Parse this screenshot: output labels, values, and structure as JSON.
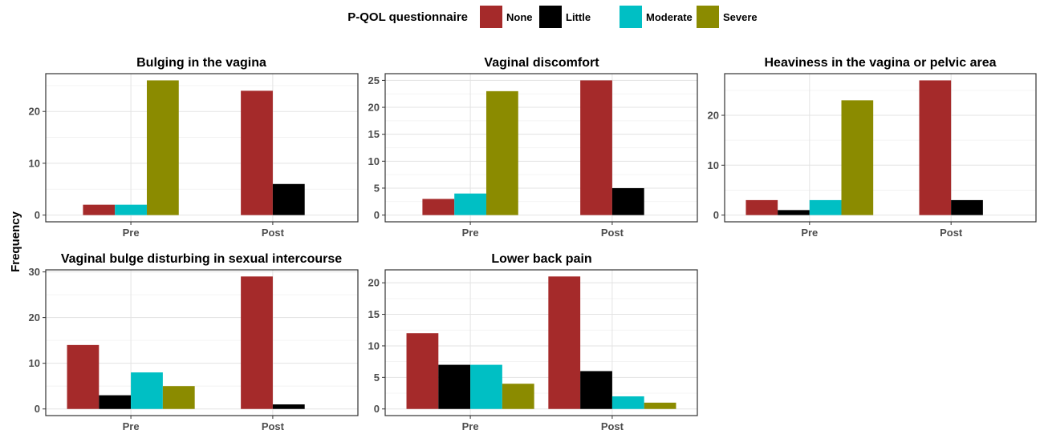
{
  "chart_data": {
    "type": "bar",
    "legend": {
      "title": "P-QOL questionnaire",
      "placement": "top",
      "entries": [
        {
          "name": "None",
          "color": "#a52a2a"
        },
        {
          "name": "Little",
          "color": "#000000"
        },
        {
          "name": "Moderate",
          "color": "#00bfc4"
        },
        {
          "name": "Severe",
          "color": "#8b8b00"
        }
      ]
    },
    "ylabel": "Frequency",
    "grid": true,
    "categories": [
      "Pre",
      "Post"
    ],
    "panels": [
      {
        "title": "Bulging in the vagina",
        "ylim": [
          -1.3,
          27.3
        ],
        "yticks": [
          0,
          10,
          20
        ],
        "groups": [
          {
            "category": "Pre",
            "bars": [
              {
                "level": "None",
                "value": 2
              },
              {
                "level": "Moderate",
                "value": 2
              },
              {
                "level": "Severe",
                "value": 26
              }
            ]
          },
          {
            "category": "Post",
            "bars": [
              {
                "level": "None",
                "value": 24
              },
              {
                "level": "Little",
                "value": 6
              }
            ]
          }
        ]
      },
      {
        "title": "Vaginal discomfort",
        "ylim": [
          -1.25,
          26.25
        ],
        "yticks": [
          0,
          5,
          10,
          15,
          20,
          25
        ],
        "groups": [
          {
            "category": "Pre",
            "bars": [
              {
                "level": "None",
                "value": 3
              },
              {
                "level": "Moderate",
                "value": 4
              },
              {
                "level": "Severe",
                "value": 23
              }
            ]
          },
          {
            "category": "Post",
            "bars": [
              {
                "level": "None",
                "value": 25
              },
              {
                "level": "Little",
                "value": 5
              }
            ]
          }
        ]
      },
      {
        "title": "Heaviness in the vagina or pelvic area",
        "ylim": [
          -1.35,
          28.35
        ],
        "yticks": [
          0,
          10,
          20
        ],
        "groups": [
          {
            "category": "Pre",
            "bars": [
              {
                "level": "None",
                "value": 3
              },
              {
                "level": "Little",
                "value": 1
              },
              {
                "level": "Moderate",
                "value": 3
              },
              {
                "level": "Severe",
                "value": 23
              }
            ]
          },
          {
            "category": "Post",
            "bars": [
              {
                "level": "None",
                "value": 27
              },
              {
                "level": "Little",
                "value": 3
              }
            ]
          }
        ]
      },
      {
        "title": "Vaginal bulge disturbing in sexual intercourse",
        "ylim": [
          -1.45,
          30.45
        ],
        "yticks": [
          0,
          10,
          20,
          30
        ],
        "groups": [
          {
            "category": "Pre",
            "bars": [
              {
                "level": "None",
                "value": 14
              },
              {
                "level": "Little",
                "value": 3
              },
              {
                "level": "Moderate",
                "value": 8
              },
              {
                "level": "Severe",
                "value": 5
              }
            ]
          },
          {
            "category": "Post",
            "bars": [
              {
                "level": "None",
                "value": 29
              },
              {
                "level": "Little",
                "value": 1
              }
            ]
          }
        ]
      },
      {
        "title": "Lower back pain",
        "ylim": [
          -1.05,
          22.05
        ],
        "yticks": [
          0,
          5,
          10,
          15,
          20
        ],
        "groups": [
          {
            "category": "Pre",
            "bars": [
              {
                "level": "None",
                "value": 12
              },
              {
                "level": "Little",
                "value": 7
              },
              {
                "level": "Moderate",
                "value": 7
              },
              {
                "level": "Severe",
                "value": 4
              }
            ]
          },
          {
            "category": "Post",
            "bars": [
              {
                "level": "None",
                "value": 21
              },
              {
                "level": "Little",
                "value": 6
              },
              {
                "level": "Moderate",
                "value": 2
              },
              {
                "level": "Severe",
                "value": 1
              }
            ]
          }
        ]
      }
    ]
  }
}
